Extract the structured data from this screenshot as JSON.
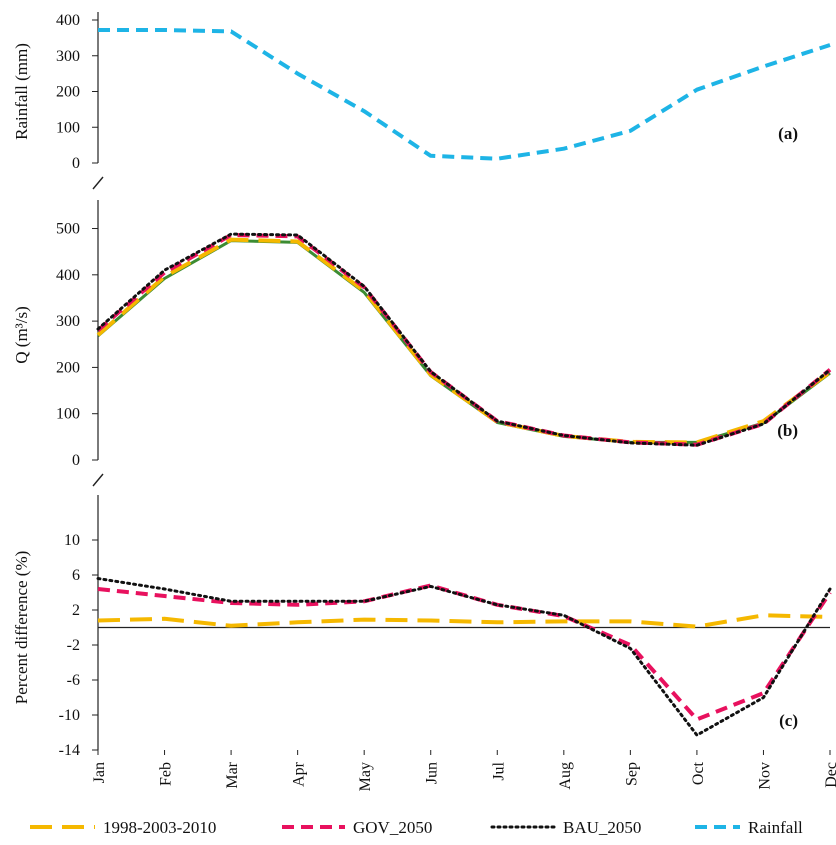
{
  "chart_data": [
    {
      "type": "line",
      "panel_label": "(a)",
      "ylabel": "Rainfall (mm)",
      "ylim": [
        0,
        400
      ],
      "yticks": [
        "0",
        "100",
        "200",
        "300",
        "400"
      ],
      "categories": [
        "Jan",
        "Feb",
        "Mar",
        "Apr",
        "May",
        "Jun",
        "Jul",
        "Aug",
        "Sep",
        "Oct",
        "Nov",
        "Dec"
      ],
      "series": [
        {
          "name": "Rainfall",
          "color": "#1EB4E6",
          "dash": "dashed",
          "values": [
            372,
            372,
            368,
            250,
            145,
            20,
            12,
            40,
            90,
            205,
            270,
            330
          ]
        }
      ]
    },
    {
      "type": "line",
      "panel_label": "(b)",
      "ylabel": "Q (m³/s)",
      "ylim": [
        0,
        540
      ],
      "yticks": [
        "0",
        "100",
        "200",
        "300",
        "400",
        "500"
      ],
      "categories": [
        "Jan",
        "Feb",
        "Mar",
        "Apr",
        "May",
        "Jun",
        "Jul",
        "Aug",
        "Sep",
        "Oct",
        "Nov",
        "Dec"
      ],
      "series": [
        {
          "name": "",
          "color": "#3C8C32",
          "dash": "solid",
          "values": [
            268,
            392,
            474,
            470,
            362,
            182,
            81,
            51,
            38,
            38,
            80,
            188
          ]
        },
        {
          "name": "1998-2003-2010",
          "color": "#F5B800",
          "dash": "longdash",
          "values": [
            270,
            396,
            476,
            472,
            365,
            184,
            82,
            52,
            39,
            38,
            84,
            190
          ]
        },
        {
          "name": "GOV_2050",
          "color": "#E8115E",
          "dash": "dashed",
          "values": [
            280,
            405,
            486,
            483,
            373,
            190,
            84,
            53,
            38,
            33,
            78,
            195
          ]
        },
        {
          "name": "BAU_2050",
          "color": "#111111",
          "dash": "dotted",
          "values": [
            283,
            410,
            488,
            486,
            375,
            191,
            84,
            53,
            37,
            32,
            78,
            195
          ]
        }
      ]
    },
    {
      "type": "line",
      "panel_label": "(c)",
      "ylabel": "Percent difference (%)",
      "ylim": [
        -14,
        14
      ],
      "yticks": [
        "-14",
        "-10",
        "-6",
        "-2",
        "2",
        "6",
        "10"
      ],
      "categories": [
        "Jan",
        "Feb",
        "Mar",
        "Apr",
        "May",
        "Jun",
        "Jul",
        "Aug",
        "Sep",
        "Oct",
        "Nov",
        "Dec"
      ],
      "series": [
        {
          "name": "1998-2003-2010",
          "color": "#F5B800",
          "dash": "longdash",
          "values": [
            0.8,
            1.0,
            0.2,
            0.6,
            0.9,
            0.8,
            0.6,
            0.7,
            0.7,
            0.1,
            1.4,
            1.2
          ]
        },
        {
          "name": "GOV_2050",
          "color": "#E8115E",
          "dash": "dashed",
          "values": [
            4.4,
            3.6,
            2.8,
            2.6,
            3.0,
            4.8,
            2.6,
            1.3,
            -2.0,
            -10.5,
            -7.5,
            4.0
          ]
        },
        {
          "name": "BAU_2050",
          "color": "#111111",
          "dash": "dotted",
          "values": [
            5.6,
            4.4,
            3.0,
            3.0,
            3.0,
            4.7,
            2.6,
            1.4,
            -2.4,
            -12.3,
            -8.0,
            4.4
          ]
        }
      ]
    }
  ],
  "legend": [
    {
      "label": "1998-2003-2010",
      "color": "#F5B800",
      "dash": "longdash"
    },
    {
      "label": "GOV_2050",
      "color": "#E8115E",
      "dash": "dashed"
    },
    {
      "label": "BAU_2050",
      "color": "#111111",
      "dash": "dotted"
    },
    {
      "label": "Rainfall",
      "color": "#1EB4E6",
      "dash": "dashed"
    }
  ]
}
